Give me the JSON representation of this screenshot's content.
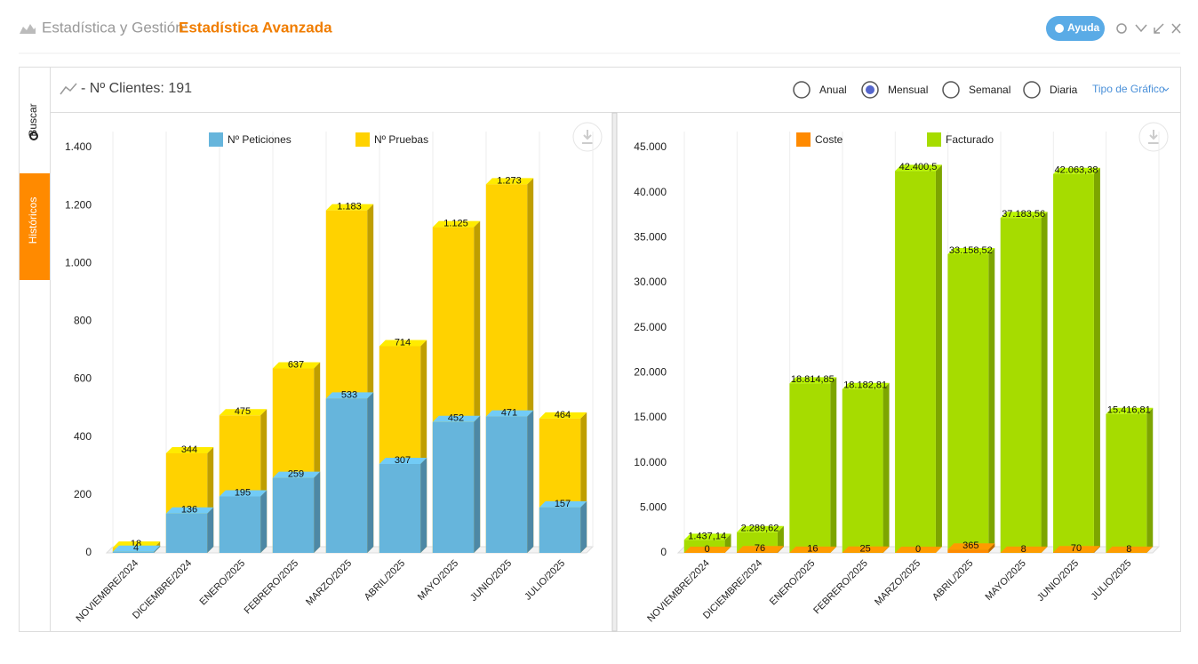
{
  "header": {
    "section": "Estadística y Gestión:",
    "title": "Estadística Avanzada",
    "help": "Ayuda"
  },
  "tabs": [
    "Buscar",
    "Históricos"
  ],
  "panel": {
    "title": "- Nº Clientes: 191",
    "periods": [
      "Anual",
      "Mensual",
      "Semanal",
      "Diaria"
    ],
    "selected_period": "Mensual",
    "chart_type": "Tipo de Gráfico"
  },
  "chart_data": [
    {
      "type": "bar3d",
      "legend": "top",
      "categories": [
        "NOVIEMBRE/2024",
        "DICIEMBRE/2024",
        "ENERO/2025",
        "FEBRERO/2025",
        "MARZO/2025",
        "ABRIL/2025",
        "MAYO/2025",
        "JUNIO/2025",
        "JULIO/2025"
      ],
      "series": [
        {
          "name": "Nº Peticiones",
          "color": "#66b5dc",
          "values": [
            4,
            136,
            195,
            259,
            533,
            307,
            452,
            471,
            157
          ]
        },
        {
          "name": "Nº Pruebas",
          "color": "#ffd200",
          "values": [
            18,
            344,
            475,
            637,
            1183,
            714,
            1125,
            1273,
            464
          ],
          "value_labels": [
            "18",
            "344",
            "475",
            "637",
            "1.183",
            "714",
            "1.125",
            "1.273",
            "464"
          ]
        }
      ],
      "ylim": [
        0,
        1400
      ],
      "yticks": [
        0,
        200,
        400,
        600,
        800,
        {
          "value": 1000,
          "label": "1.000"
        },
        {
          "value": 1200,
          "label": "1.200"
        },
        {
          "value": 1400,
          "label": "1.400"
        }
      ],
      "grid": true
    },
    {
      "type": "bar3d",
      "legend": "top",
      "categories": [
        "NOVIEMBRE/2024",
        "DICIEMBRE/2024",
        "ENERO/2025",
        "FEBRERO/2025",
        "MARZO/2025",
        "ABRIL/2025",
        "MAYO/2025",
        "JUNIO/2025",
        "JULIO/2025"
      ],
      "series": [
        {
          "name": "Coste",
          "color": "#ff8a00",
          "values": [
            0,
            76,
            16,
            25,
            0,
            365,
            8,
            70,
            8
          ]
        },
        {
          "name": "Facturado",
          "color": "#a6dc00",
          "values": [
            1437.14,
            2289.62,
            18814.85,
            18182.81,
            42400.5,
            33158.52,
            37183.56,
            42063.38,
            15416.81
          ],
          "value_labels": [
            "1.437,14",
            "2.289,62",
            "18.814,85",
            "18.182,81",
            "42.400,5",
            "33.158,52",
            "37.183,56",
            "42.063,38",
            "15.416,81"
          ]
        }
      ],
      "ylim": [
        0,
        45000
      ],
      "yticks": [
        0,
        {
          "value": 5000,
          "label": "5.000"
        },
        {
          "value": 10000,
          "label": "10.000"
        },
        {
          "value": 15000,
          "label": "15.000"
        },
        {
          "value": 20000,
          "label": "20.000"
        },
        {
          "value": 25000,
          "label": "25.000"
        },
        {
          "value": 30000,
          "label": "30.000"
        },
        {
          "value": 35000,
          "label": "35.000"
        },
        {
          "value": 40000,
          "label": "40.000"
        },
        {
          "value": 45000,
          "label": "45.000"
        }
      ],
      "grid": true
    }
  ]
}
